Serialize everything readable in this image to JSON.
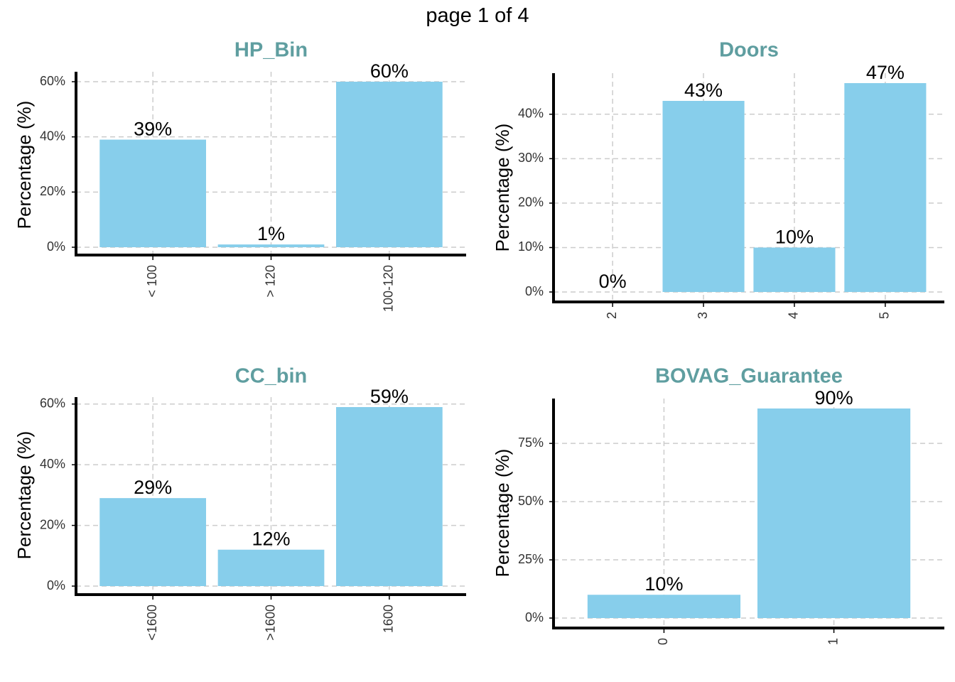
{
  "page": {
    "title": "page 1 of 4"
  },
  "colors": {
    "bar": "#87CEEB",
    "title": "#5F9EA0",
    "grid": "#cccccc",
    "axis": "#000000"
  },
  "chart_data": [
    {
      "type": "bar",
      "title": "HP_Bin",
      "ylabel": "Percentage (%)",
      "categories": [
        "< 100",
        "> 120",
        "100-120"
      ],
      "values": [
        39,
        1,
        60
      ],
      "labels": [
        "39%",
        "1%",
        "60%"
      ],
      "ylim": [
        0,
        60
      ],
      "yticks": [
        0,
        20,
        40,
        60
      ],
      "ytick_labels": [
        "0%",
        "20%",
        "40%",
        "60%"
      ],
      "grid": true
    },
    {
      "type": "bar",
      "title": "Doors",
      "ylabel": "Percentage (%)",
      "categories": [
        "2",
        "3",
        "4",
        "5"
      ],
      "values": [
        0,
        43,
        10,
        47
      ],
      "labels": [
        "0%",
        "43%",
        "10%",
        "47%"
      ],
      "ylim": [
        0,
        47
      ],
      "yticks": [
        0,
        10,
        20,
        30,
        40
      ],
      "ytick_labels": [
        "0%",
        "10%",
        "20%",
        "30%",
        "40%"
      ],
      "grid": true
    },
    {
      "type": "bar",
      "title": "CC_bin",
      "ylabel": "Percentage (%)",
      "categories": [
        "<1600",
        ">1600",
        "1600"
      ],
      "values": [
        29,
        12,
        59
      ],
      "labels": [
        "29%",
        "12%",
        "59%"
      ],
      "ylim": [
        0,
        59
      ],
      "yticks": [
        0,
        20,
        40,
        60
      ],
      "ytick_labels": [
        "0%",
        "20%",
        "40%",
        "60%"
      ],
      "grid": true
    },
    {
      "type": "bar",
      "title": "BOVAG_Guarantee",
      "ylabel": "Percentage (%)",
      "categories": [
        "0",
        "1"
      ],
      "values": [
        10,
        90
      ],
      "labels": [
        "10%",
        "90%"
      ],
      "ylim": [
        0,
        90
      ],
      "yticks": [
        0,
        25,
        50,
        75
      ],
      "ytick_labels": [
        "0%",
        "25%",
        "50%",
        "75%"
      ],
      "grid": true
    }
  ]
}
